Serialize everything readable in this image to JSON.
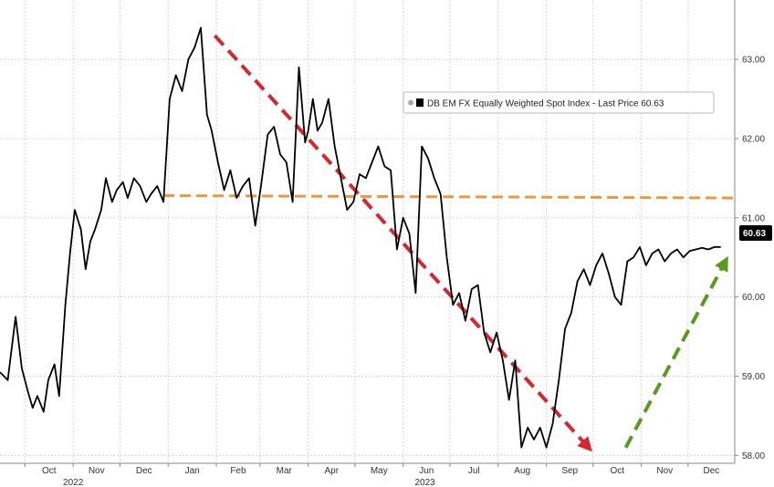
{
  "chart_data": {
    "type": "line",
    "title": "",
    "xlabel": "",
    "ylabel": "",
    "x_range": [
      "2022-09-15",
      "2023-12-31"
    ],
    "ylim": [
      57.9,
      63.75
    ],
    "y_axis_side": "right",
    "grid": true,
    "legend": {
      "placement": "top-right",
      "entries": [
        "DB EM FX Equally Weighted Spot Index - Last Price 60.63"
      ]
    },
    "last_price_label": "60.63",
    "x_ticks": [
      "Oct",
      "Nov",
      "Dec",
      "Jan",
      "Feb",
      "Mar",
      "Apr",
      "May",
      "Jun",
      "Jul",
      "Aug",
      "Sep",
      "Oct",
      "Nov",
      "Dec"
    ],
    "x_ticks_at": [
      "2022-10-01",
      "2022-11-01",
      "2022-12-01",
      "2023-01-01",
      "2023-02-01",
      "2023-03-01",
      "2023-04-01",
      "2023-05-01",
      "2023-06-01",
      "2023-07-01",
      "2023-08-01",
      "2023-09-01",
      "2023-10-01",
      "2023-11-01",
      "2023-12-01"
    ],
    "x_year_labels": [
      {
        "label": "2022",
        "at": "2022-11-01"
      },
      {
        "label": "2023",
        "at": "2023-06-15"
      }
    ],
    "y_ticks": [
      "58.00",
      "59.00",
      "60.00",
      "61.00",
      "62.00",
      "63.00"
    ],
    "y_ticks_at": [
      58,
      59,
      60,
      61,
      62,
      63
    ],
    "series": [
      {
        "name": "DB EM FX Equally Weighted Spot Index - Last Price 60.63",
        "color": "#000000",
        "x": [
          "2022-09-15",
          "2022-09-20",
          "2022-09-25",
          "2022-09-29",
          "2022-10-03",
          "2022-10-06",
          "2022-10-09",
          "2022-10-13",
          "2022-10-16",
          "2022-10-20",
          "2022-10-23",
          "2022-10-27",
          "2022-10-30",
          "2022-11-02",
          "2022-11-06",
          "2022-11-09",
          "2022-11-12",
          "2022-11-15",
          "2022-11-19",
          "2022-11-22",
          "2022-11-26",
          "2022-11-29",
          "2022-12-03",
          "2022-12-06",
          "2022-12-10",
          "2022-12-14",
          "2022-12-18",
          "2022-12-21",
          "2022-12-25",
          "2022-12-29",
          "2023-01-02",
          "2023-01-06",
          "2023-01-10",
          "2023-01-14",
          "2023-01-18",
          "2023-01-22",
          "2023-01-26",
          "2023-01-29",
          "2023-02-02",
          "2023-02-06",
          "2023-02-10",
          "2023-02-14",
          "2023-02-18",
          "2023-02-22",
          "2023-02-26",
          "2023-03-02",
          "2023-03-06",
          "2023-03-10",
          "2023-03-14",
          "2023-03-18",
          "2023-03-22",
          "2023-03-26",
          "2023-03-30",
          "2023-04-01",
          "2023-04-04",
          "2023-04-07",
          "2023-04-10",
          "2023-04-14",
          "2023-04-18",
          "2023-04-22",
          "2023-04-26",
          "2023-04-30",
          "2023-05-04",
          "2023-05-08",
          "2023-05-12",
          "2023-05-16",
          "2023-05-20",
          "2023-05-24",
          "2023-05-28",
          "2023-06-01",
          "2023-06-05",
          "2023-06-09",
          "2023-06-13",
          "2023-06-17",
          "2023-06-21",
          "2023-06-25",
          "2023-06-29",
          "2023-07-03",
          "2023-07-07",
          "2023-07-11",
          "2023-07-15",
          "2023-07-19",
          "2023-07-23",
          "2023-07-27",
          "2023-07-31",
          "2023-08-04",
          "2023-08-08",
          "2023-08-12",
          "2023-08-16",
          "2023-08-20",
          "2023-08-24",
          "2023-08-28",
          "2023-09-01",
          "2023-09-05",
          "2023-09-09",
          "2023-09-13",
          "2023-09-17",
          "2023-09-21",
          "2023-09-25",
          "2023-09-29",
          "2023-10-03",
          "2023-10-07",
          "2023-10-11",
          "2023-10-15",
          "2023-10-19",
          "2023-10-23",
          "2023-10-27",
          "2023-10-31",
          "2023-11-04",
          "2023-11-08",
          "2023-11-12",
          "2023-11-16",
          "2023-11-20",
          "2023-11-24",
          "2023-11-28",
          "2023-12-02",
          "2023-12-06",
          "2023-12-10",
          "2023-12-14",
          "2023-12-18",
          "2023-12-22"
        ],
        "values": [
          59.05,
          58.95,
          59.75,
          59.1,
          58.8,
          58.6,
          58.75,
          58.55,
          58.95,
          59.15,
          58.75,
          59.9,
          60.55,
          61.1,
          60.85,
          60.35,
          60.7,
          60.85,
          61.1,
          61.5,
          61.2,
          61.35,
          61.45,
          61.25,
          61.5,
          61.4,
          61.2,
          61.3,
          61.4,
          61.2,
          62.5,
          62.8,
          62.6,
          63.0,
          63.15,
          63.4,
          62.3,
          62.1,
          61.7,
          61.35,
          61.6,
          61.25,
          61.4,
          61.5,
          60.9,
          61.45,
          62.05,
          62.15,
          61.8,
          61.7,
          61.2,
          62.9,
          61.95,
          62.1,
          62.5,
          62.1,
          62.2,
          62.5,
          61.9,
          61.5,
          61.1,
          61.2,
          61.55,
          61.5,
          61.7,
          61.9,
          61.65,
          61.6,
          60.6,
          61.0,
          60.8,
          60.05,
          61.9,
          61.75,
          61.5,
          61.3,
          60.5,
          59.9,
          60.05,
          59.7,
          60.1,
          60.15,
          59.55,
          59.3,
          59.55,
          59.2,
          58.7,
          59.2,
          58.1,
          58.35,
          58.2,
          58.35,
          58.1,
          58.4,
          58.95,
          59.6,
          59.8,
          60.2,
          60.35,
          60.15,
          60.4,
          60.55,
          60.3,
          60.0,
          59.9,
          60.45,
          60.5,
          60.63,
          60.4,
          60.55,
          60.6,
          60.45,
          60.55,
          60.6,
          60.5,
          60.58,
          60.6,
          60.62,
          60.6,
          60.63,
          60.63
        ]
      }
    ],
    "annotations": [
      {
        "name": "resistance-line",
        "style": "dashed",
        "color": "#e89a3c",
        "x1": "2022-12-29",
        "y1": 61.28,
        "x2": "2023-12-31",
        "y2": 61.25
      },
      {
        "name": "downtrend-arrow",
        "style": "dashed-arrow",
        "color": "#d8262f",
        "x1": "2023-01-31",
        "y1": 63.3,
        "x2": "2023-09-28",
        "y2": 58.1
      },
      {
        "name": "uptrend-arrow",
        "style": "dashed-arrow",
        "color": "#5a9a1e",
        "x1": "2023-10-22",
        "y1": 58.1,
        "x2": "2023-12-25",
        "y2": 60.45
      }
    ]
  }
}
